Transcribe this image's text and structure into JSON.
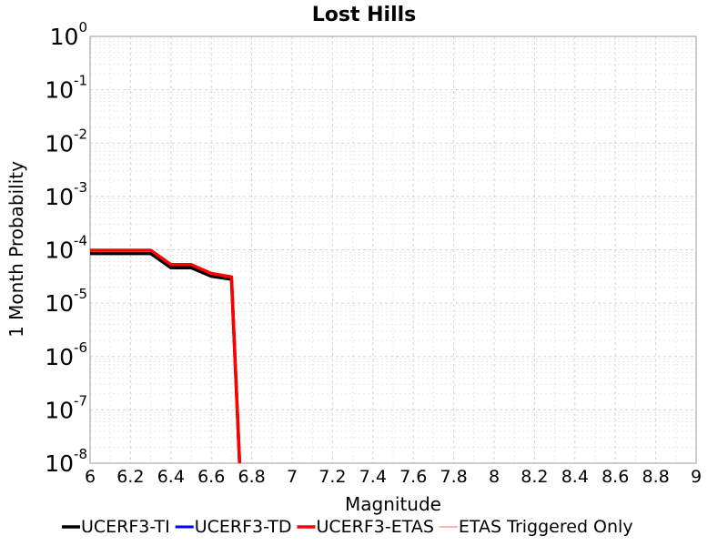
{
  "chart_data": {
    "type": "line",
    "title": "Lost Hills",
    "xlabel": "Magnitude",
    "ylabel": "1 Month Probability",
    "xlim": [
      6,
      9
    ],
    "ylim": [
      1e-08,
      1
    ],
    "yscale": "log",
    "grid": true,
    "legend_position": "bottom",
    "x_ticks": [
      "6",
      "6.2",
      "6.4",
      "6.6",
      "6.8",
      "7",
      "7.2",
      "7.4",
      "7.6",
      "7.8",
      "8",
      "8.2",
      "8.4",
      "8.6",
      "8.8",
      "9"
    ],
    "y_ticks": [
      {
        "base": "10",
        "exp": "0"
      },
      {
        "base": "10",
        "exp": "-1"
      },
      {
        "base": "10",
        "exp": "-2"
      },
      {
        "base": "10",
        "exp": "-3"
      },
      {
        "base": "10",
        "exp": "-4"
      },
      {
        "base": "10",
        "exp": "-5"
      },
      {
        "base": "10",
        "exp": "-6"
      },
      {
        "base": "10",
        "exp": "-7"
      },
      {
        "base": "10",
        "exp": "-8"
      }
    ],
    "series": [
      {
        "name": "UCERF3-TI",
        "color": "#000000",
        "width": 3.5,
        "x": [
          6.0,
          6.1,
          6.2,
          6.3,
          6.4,
          6.5,
          6.6,
          6.7,
          6.74
        ],
        "y": [
          8.5e-05,
          8.5e-05,
          8.5e-05,
          8.5e-05,
          4.6e-05,
          4.6e-05,
          3.2e-05,
          2.8e-05,
          1e-08
        ]
      },
      {
        "name": "UCERF3-TD",
        "color": "#0000ff",
        "width": 3,
        "x": [
          6.0,
          6.1,
          6.2,
          6.3,
          6.4,
          6.5,
          6.6,
          6.7,
          6.74
        ],
        "y": [
          9.8e-05,
          9.8e-05,
          9.8e-05,
          9.8e-05,
          5.3e-05,
          5.3e-05,
          3.6e-05,
          3.1e-05,
          1e-08
        ]
      },
      {
        "name": "UCERF3-ETAS",
        "color": "#ff0000",
        "width": 3.5,
        "x": [
          6.0,
          6.1,
          6.2,
          6.3,
          6.4,
          6.5,
          6.6,
          6.7,
          6.74
        ],
        "y": [
          9.8e-05,
          9.8e-05,
          9.8e-05,
          9.8e-05,
          5.3e-05,
          5.3e-05,
          3.6e-05,
          3.1e-05,
          1e-08
        ]
      },
      {
        "name": "ETAS Triggered Only",
        "color": "#ff6b6b",
        "width": 1,
        "x": [],
        "y": []
      }
    ]
  }
}
